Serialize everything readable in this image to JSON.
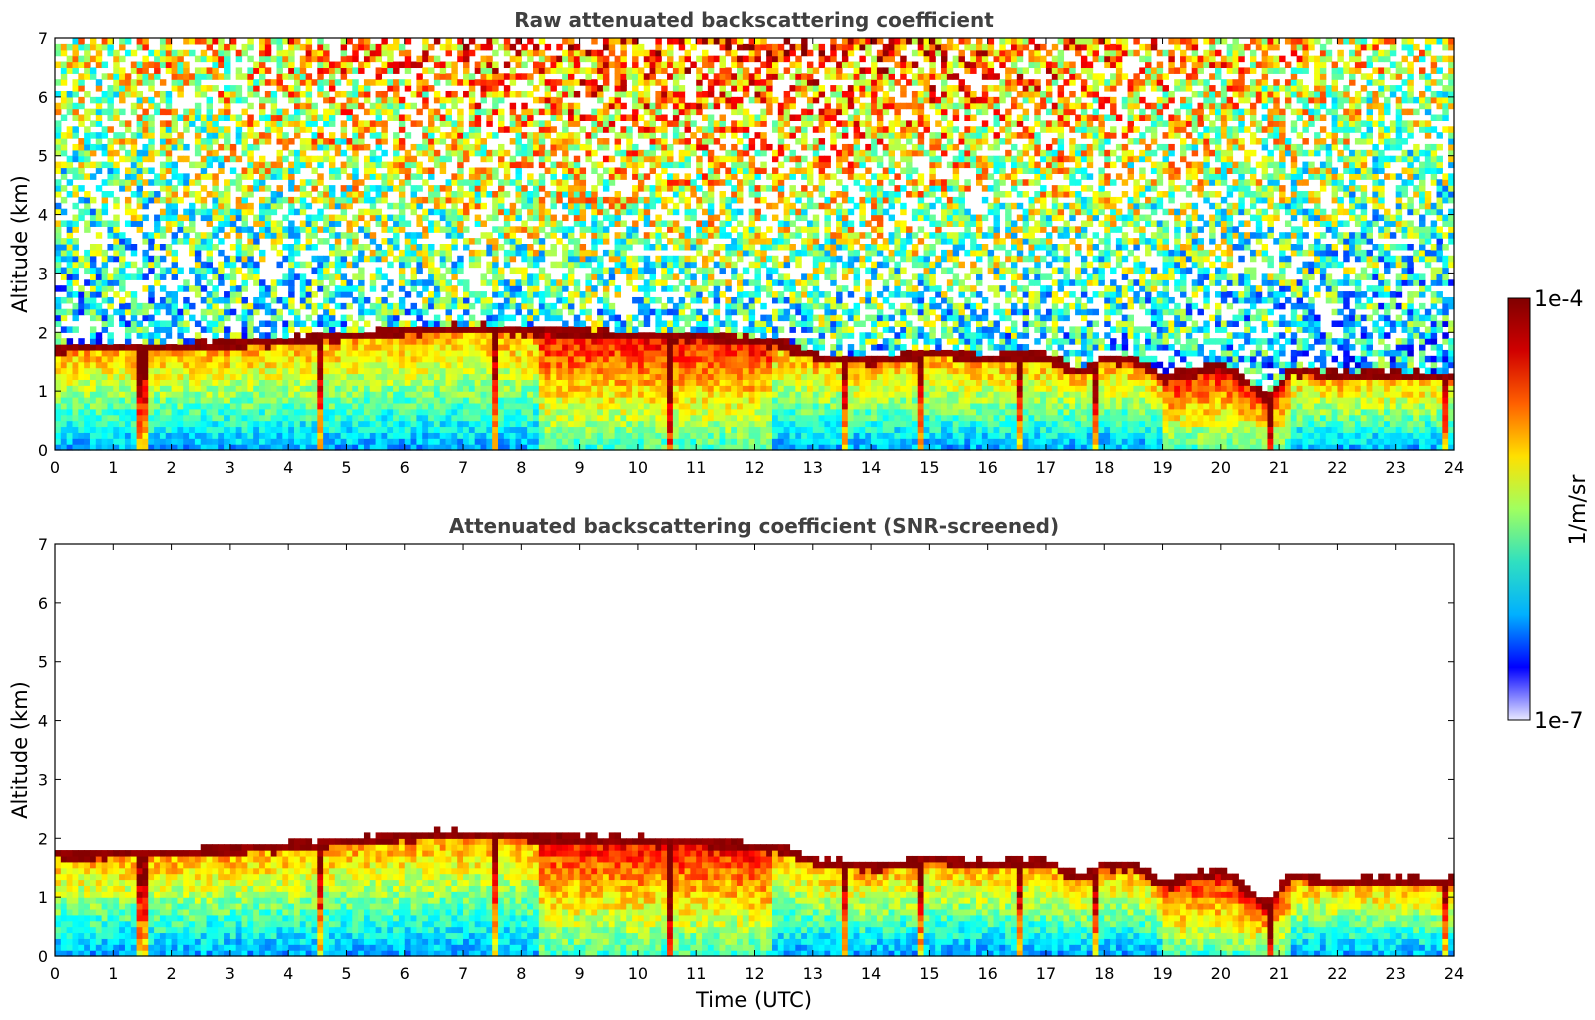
{
  "chart_data": [
    {
      "type": "heatmap",
      "title": "Raw attenuated backscattering coefficient",
      "xlabel": "",
      "ylabel": "Altitude (km)",
      "xlim": [
        0,
        24
      ],
      "ylim": [
        0,
        7
      ],
      "xticks": [
        "0",
        "1",
        "2",
        "3",
        "4",
        "5",
        "6",
        "7",
        "8",
        "9",
        "10",
        "11",
        "12",
        "13",
        "14",
        "15",
        "16",
        "17",
        "18",
        "19",
        "20",
        "21",
        "22",
        "23",
        "24"
      ],
      "yticks": [
        "0",
        "1",
        "2",
        "3",
        "4",
        "5",
        "6",
        "7"
      ],
      "screened": false,
      "layer_top_km": [
        {
          "t": 0,
          "z": 1.72
        },
        {
          "t": 2,
          "z": 1.75
        },
        {
          "t": 4,
          "z": 1.85
        },
        {
          "t": 6,
          "z": 2.02
        },
        {
          "t": 7,
          "z": 2.07
        },
        {
          "t": 8,
          "z": 2.02
        },
        {
          "t": 10,
          "z": 1.95
        },
        {
          "t": 11.5,
          "z": 1.9
        },
        {
          "t": 12.5,
          "z": 1.8
        },
        {
          "t": 13,
          "z": 1.6
        },
        {
          "t": 14,
          "z": 1.5
        },
        {
          "t": 15,
          "z": 1.65
        },
        {
          "t": 16,
          "z": 1.55
        },
        {
          "t": 17,
          "z": 1.6
        },
        {
          "t": 17.6,
          "z": 1.3
        },
        {
          "t": 18,
          "z": 1.55
        },
        {
          "t": 18.6,
          "z": 1.5
        },
        {
          "t": 19,
          "z": 1.2
        },
        {
          "t": 20,
          "z": 1.45
        },
        {
          "t": 20.8,
          "z": 0.85
        },
        {
          "t": 21.2,
          "z": 1.35
        },
        {
          "t": 22,
          "z": 1.25
        },
        {
          "t": 23,
          "z": 1.28
        },
        {
          "t": 24,
          "z": 1.25
        }
      ]
    },
    {
      "type": "heatmap",
      "title": "Attenuated backscattering coefficient (SNR-screened)",
      "xlabel": "Time (UTC)",
      "ylabel": "Altitude (km)",
      "xlim": [
        0,
        24
      ],
      "ylim": [
        0,
        7
      ],
      "xticks": [
        "0",
        "1",
        "2",
        "3",
        "4",
        "5",
        "6",
        "7",
        "8",
        "9",
        "10",
        "11",
        "12",
        "13",
        "14",
        "15",
        "16",
        "17",
        "18",
        "19",
        "20",
        "21",
        "22",
        "23",
        "24"
      ],
      "yticks": [
        "0",
        "1",
        "2",
        "3",
        "4",
        "5",
        "6",
        "7"
      ],
      "screened": true
    }
  ],
  "colorbar": {
    "label": "1/m/sr",
    "max_label": "1e-4",
    "min_label": "1e-7",
    "scale": "log",
    "colormap": "jet",
    "colors": [
      "#e8e8ff",
      "#0000ff",
      "#00b0ff",
      "#30e0c0",
      "#a0ff60",
      "#ffe000",
      "#ff6000",
      "#d00000",
      "#800000"
    ]
  }
}
